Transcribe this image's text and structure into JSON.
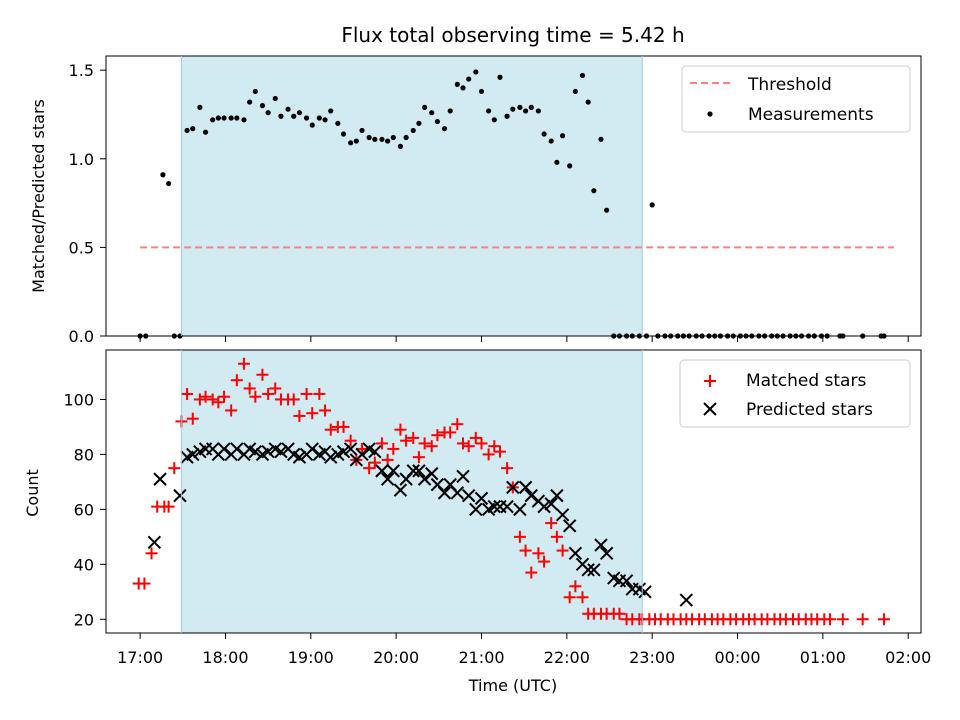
{
  "chart_data": [
    {
      "type": "scatter",
      "title": "Flux total observing time = 5.42 h",
      "xlabel": "",
      "ylabel": "Matched/Predicted stars",
      "ylim": [
        0,
        1.58
      ],
      "yticks": [
        "0.0",
        "0.5",
        "1.0",
        "1.5"
      ],
      "ytick_values": [
        0,
        0.5,
        1.0,
        1.5
      ],
      "shaded_interval": [
        "17:29",
        "22:53"
      ],
      "shade_color": "#add8e6",
      "threshold": {
        "name": "Threshold",
        "value": 0.5,
        "x": [
          "17:00",
          "01:50"
        ],
        "color": "#ff7f7f"
      },
      "legend": {
        "placement": "top-right",
        "entries": [
          "Threshold",
          "Measurements"
        ]
      },
      "series": [
        {
          "name": "Measurements",
          "color": "#000000",
          "x": [
            "17:00",
            "17:04",
            "17:16",
            "17:20",
            "17:24",
            "17:28",
            "17:33",
            "17:37",
            "17:42",
            "17:46",
            "17:51",
            "17:55",
            "17:59",
            "18:04",
            "18:08",
            "18:13",
            "18:17",
            "18:21",
            "18:26",
            "18:30",
            "18:35",
            "18:39",
            "18:44",
            "18:48",
            "18:52",
            "18:57",
            "19:01",
            "19:06",
            "19:10",
            "19:14",
            "19:19",
            "19:23",
            "19:28",
            "19:32",
            "19:36",
            "19:41",
            "19:45",
            "19:50",
            "19:54",
            "19:58",
            "20:03",
            "20:07",
            "20:12",
            "20:16",
            "20:20",
            "20:25",
            "20:29",
            "20:34",
            "20:38",
            "20:43",
            "20:47",
            "20:51",
            "20:56",
            "21:00",
            "21:05",
            "21:09",
            "21:13",
            "21:18",
            "21:22",
            "21:27",
            "21:31",
            "21:35",
            "21:40",
            "21:44",
            "21:49",
            "21:53",
            "21:57",
            "22:02",
            "22:06",
            "22:11",
            "22:15",
            "22:19",
            "22:24",
            "22:28",
            "22:33",
            "22:37",
            "22:42",
            "22:46",
            "22:51",
            "22:56",
            "23:00",
            "23:04",
            "23:09",
            "23:13",
            "23:18",
            "23:22",
            "23:26",
            "23:31",
            "23:35",
            "23:40",
            "23:44",
            "23:48",
            "23:53",
            "23:57",
            "00:02",
            "00:06",
            "00:10",
            "00:15",
            "00:19",
            "00:24",
            "00:28",
            "00:32",
            "00:37",
            "00:41",
            "00:45",
            "00:50",
            "00:54",
            "00:59",
            "01:03",
            "01:12",
            "01:14",
            "01:28",
            "01:41",
            "01:43"
          ],
          "y": [
            0,
            0,
            0.91,
            0.86,
            0,
            0,
            1.16,
            1.17,
            1.29,
            1.15,
            1.22,
            1.23,
            1.23,
            1.23,
            1.23,
            1.22,
            1.32,
            1.38,
            1.3,
            1.26,
            1.34,
            1.24,
            1.28,
            1.24,
            1.26,
            1.23,
            1.19,
            1.23,
            1.22,
            1.27,
            1.2,
            1.14,
            1.09,
            1.1,
            1.16,
            1.12,
            1.11,
            1.11,
            1.1,
            1.12,
            1.07,
            1.12,
            1.16,
            1.2,
            1.29,
            1.26,
            1.21,
            1.17,
            1.27,
            1.42,
            1.4,
            1.45,
            1.49,
            1.38,
            1.27,
            1.22,
            1.46,
            1.24,
            1.28,
            1.29,
            1.27,
            1.29,
            1.27,
            1.14,
            1.1,
            0.98,
            1.13,
            0.96,
            1.38,
            1.47,
            1.32,
            0.82,
            1.11,
            0.71,
            0,
            0,
            0,
            0,
            0,
            0,
            0.74,
            0,
            0,
            0,
            0,
            0,
            0,
            0,
            0,
            0,
            0,
            0,
            0,
            0,
            0,
            0,
            0,
            0,
            0,
            0,
            0,
            0,
            0,
            0,
            0,
            0,
            0,
            0,
            0,
            0,
            0,
            0,
            0,
            0
          ]
        }
      ],
      "grid": false
    },
    {
      "type": "scatter",
      "xlabel": "Time (UTC)",
      "ylabel": "Count",
      "ylim": [
        15,
        118
      ],
      "yticks": [
        "20",
        "40",
        "60",
        "80",
        "100"
      ],
      "ytick_values": [
        20,
        40,
        60,
        80,
        100
      ],
      "xticks": [
        "17:00",
        "18:00",
        "19:00",
        "20:00",
        "21:00",
        "22:00",
        "23:00",
        "00:00",
        "01:00",
        "02:00"
      ],
      "shaded_interval": [
        "17:29",
        "22:53"
      ],
      "shade_color": "#add8e6",
      "legend": {
        "placement": "top-right",
        "entries": [
          "Matched stars",
          "Predicted stars"
        ]
      },
      "series": [
        {
          "name": "Matched stars",
          "color": "#ff0000",
          "marker": "+",
          "x": [
            "16:59",
            "17:03",
            "17:08",
            "17:12",
            "17:17",
            "17:20",
            "17:24",
            "17:29",
            "17:33",
            "17:37",
            "17:42",
            "17:46",
            "17:51",
            "17:55",
            "17:59",
            "18:04",
            "18:08",
            "18:13",
            "18:17",
            "18:21",
            "18:26",
            "18:30",
            "18:35",
            "18:39",
            "18:44",
            "18:48",
            "18:52",
            "18:57",
            "19:01",
            "19:06",
            "19:10",
            "19:14",
            "19:19",
            "19:23",
            "19:28",
            "19:32",
            "19:36",
            "19:41",
            "19:45",
            "19:50",
            "19:54",
            "19:58",
            "20:03",
            "20:07",
            "20:12",
            "20:16",
            "20:20",
            "20:25",
            "20:29",
            "20:34",
            "20:38",
            "20:43",
            "20:47",
            "20:51",
            "20:56",
            "21:00",
            "21:05",
            "21:09",
            "21:13",
            "21:18",
            "21:22",
            "21:27",
            "21:31",
            "21:35",
            "21:40",
            "21:44",
            "21:49",
            "21:53",
            "21:57",
            "22:02",
            "22:06",
            "22:11",
            "22:15",
            "22:19",
            "22:24",
            "22:28",
            "22:33",
            "22:37",
            "22:42",
            "22:46",
            "22:51",
            "22:53",
            "22:58",
            "23:02",
            "23:06",
            "23:11",
            "23:15",
            "23:20",
            "23:24",
            "23:28",
            "23:33",
            "23:37",
            "23:42",
            "23:46",
            "23:50",
            "23:55",
            "23:59",
            "00:04",
            "00:08",
            "00:12",
            "00:17",
            "00:21",
            "00:26",
            "00:30",
            "00:34",
            "00:39",
            "00:43",
            "00:48",
            "00:52",
            "00:56",
            "01:01",
            "01:05",
            "01:14",
            "01:28",
            "01:43"
          ],
          "y": [
            33,
            33,
            44,
            61,
            61,
            61,
            75,
            92,
            102,
            93,
            100,
            101,
            100,
            99,
            101,
            96,
            107,
            113,
            104,
            101,
            109,
            102,
            104,
            100,
            100,
            100,
            94,
            102,
            95,
            102,
            96,
            89,
            90,
            90,
            85,
            78,
            82,
            75,
            77,
            84,
            78,
            82,
            89,
            85,
            86,
            79,
            84,
            83,
            87,
            88,
            88,
            91,
            84,
            83,
            86,
            84,
            80,
            83,
            81,
            75,
            68,
            50,
            45,
            37,
            44,
            41,
            55,
            50,
            45,
            28,
            32,
            28,
            22,
            22,
            22,
            22,
            22,
            22,
            20,
            20,
            20,
            20,
            20,
            20,
            20,
            20,
            20,
            20,
            20,
            20,
            20,
            20,
            20,
            20,
            20,
            20,
            20,
            20,
            20,
            20,
            20,
            20,
            20,
            20,
            20,
            20,
            20,
            20,
            20,
            20,
            20,
            20,
            20,
            20,
            20
          ]
        },
        {
          "name": "Predicted stars",
          "color": "#000000",
          "marker": "x",
          "x": [
            "17:10",
            "17:14",
            "17:28",
            "17:33",
            "17:37",
            "17:42",
            "17:46",
            "17:51",
            "17:55",
            "17:59",
            "18:04",
            "18:08",
            "18:13",
            "18:17",
            "18:21",
            "18:26",
            "18:30",
            "18:35",
            "18:39",
            "18:44",
            "18:48",
            "18:52",
            "18:57",
            "19:01",
            "19:06",
            "19:10",
            "19:14",
            "19:19",
            "19:23",
            "19:28",
            "19:32",
            "19:36",
            "19:41",
            "19:45",
            "19:50",
            "19:54",
            "19:58",
            "20:03",
            "20:07",
            "20:12",
            "20:16",
            "20:20",
            "20:25",
            "20:29",
            "20:34",
            "20:38",
            "20:43",
            "20:47",
            "20:51",
            "20:56",
            "21:00",
            "21:05",
            "21:09",
            "21:13",
            "21:18",
            "21:22",
            "21:27",
            "21:31",
            "21:35",
            "21:40",
            "21:44",
            "21:49",
            "21:53",
            "21:57",
            "22:02",
            "22:06",
            "22:11",
            "22:15",
            "22:19",
            "22:24",
            "22:28",
            "22:33",
            "22:37",
            "22:42",
            "22:46",
            "22:51",
            "22:55",
            "23:24"
          ],
          "y": [
            48,
            71,
            65,
            79,
            80,
            81,
            82,
            82,
            80,
            82,
            80,
            82,
            80,
            82,
            81,
            80,
            81,
            82,
            81,
            82,
            80,
            79,
            80,
            82,
            80,
            81,
            79,
            80,
            81,
            82,
            78,
            80,
            82,
            81,
            74,
            71,
            74,
            67,
            71,
            74,
            74,
            71,
            73,
            69,
            66,
            69,
            66,
            72,
            65,
            60,
            64,
            60,
            61,
            61,
            61,
            68,
            60,
            68,
            65,
            63,
            61,
            62,
            65,
            58,
            54,
            44,
            40,
            38,
            38,
            47,
            44,
            35,
            34,
            34,
            31,
            31,
            30,
            27
          ]
        }
      ],
      "grid": false
    }
  ]
}
